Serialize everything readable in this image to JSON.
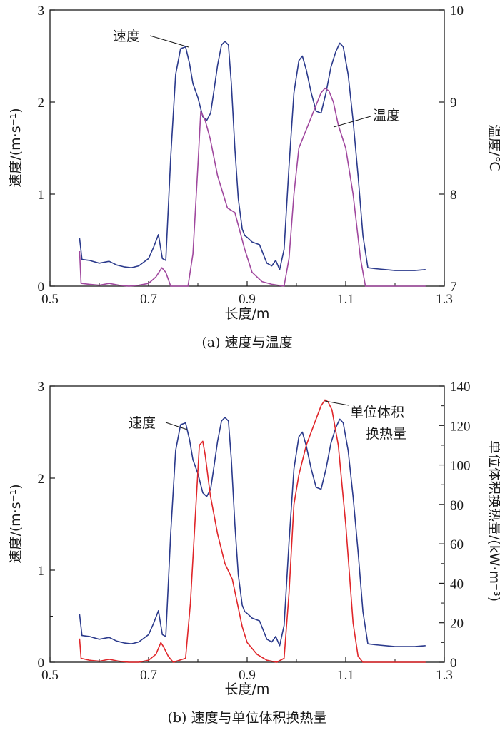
{
  "chart_data": [
    {
      "type": "line",
      "caption": "(a) 速度与温度",
      "xlabel": "长度/m",
      "ylabel_left": "速度/(m·s⁻¹)",
      "ylabel_right": "温度/℃",
      "xlim": [
        0.5,
        1.3
      ],
      "ylim_left": [
        0,
        3
      ],
      "ylim_right": [
        7,
        10
      ],
      "xticks": [
        "0.5",
        "0.7",
        "0.9",
        "1.1",
        "1.3"
      ],
      "yticks_left": [
        "0",
        "1",
        "2",
        "3"
      ],
      "yticks_right": [
        "7",
        "8",
        "9",
        "10"
      ],
      "series": [
        {
          "name": "速度",
          "axis": "left",
          "color": "#2b3a8c",
          "x": [
            0.56,
            0.565,
            0.58,
            0.6,
            0.62,
            0.635,
            0.65,
            0.665,
            0.68,
            0.7,
            0.71,
            0.72,
            0.728,
            0.735,
            0.745,
            0.755,
            0.765,
            0.775,
            0.783,
            0.79,
            0.8,
            0.81,
            0.818,
            0.826,
            0.832,
            0.84,
            0.848,
            0.855,
            0.862,
            0.868,
            0.875,
            0.882,
            0.89,
            0.895,
            0.9,
            0.91,
            0.925,
            0.94,
            0.95,
            0.958,
            0.966,
            0.975,
            0.985,
            0.995,
            1.005,
            1.012,
            1.02,
            1.03,
            1.04,
            1.05,
            1.06,
            1.07,
            1.08,
            1.088,
            1.095,
            1.105,
            1.115,
            1.125,
            1.135,
            1.145,
            1.16,
            1.2,
            1.24,
            1.262
          ],
          "y": [
            0.52,
            0.29,
            0.28,
            0.25,
            0.27,
            0.23,
            0.21,
            0.2,
            0.22,
            0.3,
            0.42,
            0.56,
            0.3,
            0.28,
            1.4,
            2.3,
            2.58,
            2.6,
            2.42,
            2.2,
            2.05,
            1.84,
            1.8,
            1.88,
            2.1,
            2.4,
            2.62,
            2.66,
            2.62,
            2.2,
            1.5,
            0.95,
            0.62,
            0.55,
            0.53,
            0.48,
            0.45,
            0.25,
            0.22,
            0.28,
            0.18,
            0.4,
            1.3,
            2.1,
            2.45,
            2.5,
            2.35,
            2.1,
            1.9,
            1.88,
            2.1,
            2.38,
            2.55,
            2.64,
            2.6,
            2.3,
            1.8,
            1.2,
            0.55,
            0.2,
            0.19,
            0.17,
            0.17,
            0.18
          ]
        },
        {
          "name": "温度",
          "axis": "right",
          "color": "#a0489e",
          "x": [
            0.56,
            0.563,
            0.58,
            0.6,
            0.62,
            0.64,
            0.66,
            0.68,
            0.7,
            0.715,
            0.727,
            0.735,
            0.745,
            0.78,
            0.79,
            0.8,
            0.806,
            0.815,
            0.825,
            0.84,
            0.86,
            0.875,
            0.885,
            0.895,
            0.91,
            0.93,
            0.95,
            0.975,
            0.985,
            0.995,
            1.005,
            1.02,
            1.035,
            1.05,
            1.058,
            1.066,
            1.075,
            1.085,
            1.1,
            1.115,
            1.13,
            1.14,
            1.18,
            1.22,
            1.262
          ],
          "y": [
            7.38,
            7.03,
            7.02,
            7.01,
            7.03,
            7.01,
            7.0,
            7.01,
            7.03,
            7.1,
            7.2,
            7.15,
            7.0,
            7.0,
            7.35,
            8.3,
            8.9,
            8.8,
            8.6,
            8.2,
            7.85,
            7.8,
            7.6,
            7.4,
            7.15,
            7.05,
            7.02,
            7.0,
            7.3,
            8.0,
            8.5,
            8.7,
            8.9,
            9.1,
            9.15,
            9.12,
            9.0,
            8.75,
            8.5,
            8.0,
            7.3,
            7.0,
            7.0,
            7.0,
            7.0
          ]
        }
      ],
      "annotations": [
        "速度",
        "温度"
      ]
    },
    {
      "type": "line",
      "caption": "(b) 速度与单位体积换热量",
      "xlabel": "长度/m",
      "ylabel_left": "速度/(m·s⁻¹)",
      "ylabel_right": "单位体积换热量/(kW·m⁻³)",
      "xlim": [
        0.5,
        1.3
      ],
      "ylim_left": [
        0,
        3
      ],
      "ylim_right": [
        0,
        140
      ],
      "xticks": [
        "0.5",
        "0.7",
        "0.9",
        "1.1",
        "1.3"
      ],
      "yticks_left": [
        "0",
        "1",
        "2",
        "3"
      ],
      "yticks_right": [
        "0",
        "20",
        "40",
        "60",
        "80",
        "100",
        "120",
        "140"
      ],
      "series": [
        {
          "name": "速度",
          "axis": "left",
          "color": "#2b3a8c",
          "x": [
            0.56,
            0.565,
            0.58,
            0.6,
            0.62,
            0.635,
            0.65,
            0.665,
            0.68,
            0.7,
            0.71,
            0.72,
            0.728,
            0.735,
            0.745,
            0.755,
            0.765,
            0.775,
            0.783,
            0.79,
            0.8,
            0.81,
            0.818,
            0.826,
            0.832,
            0.84,
            0.848,
            0.855,
            0.862,
            0.868,
            0.875,
            0.882,
            0.89,
            0.895,
            0.9,
            0.91,
            0.925,
            0.94,
            0.95,
            0.958,
            0.966,
            0.975,
            0.985,
            0.995,
            1.005,
            1.012,
            1.02,
            1.03,
            1.04,
            1.05,
            1.06,
            1.07,
            1.08,
            1.088,
            1.095,
            1.105,
            1.115,
            1.125,
            1.135,
            1.145,
            1.16,
            1.2,
            1.24,
            1.262
          ],
          "y": [
            0.52,
            0.29,
            0.28,
            0.25,
            0.27,
            0.23,
            0.21,
            0.2,
            0.22,
            0.3,
            0.42,
            0.56,
            0.3,
            0.28,
            1.4,
            2.3,
            2.58,
            2.6,
            2.42,
            2.2,
            2.05,
            1.84,
            1.8,
            1.88,
            2.1,
            2.4,
            2.62,
            2.66,
            2.62,
            2.2,
            1.5,
            0.95,
            0.62,
            0.55,
            0.53,
            0.48,
            0.45,
            0.25,
            0.22,
            0.28,
            0.18,
            0.4,
            1.3,
            2.1,
            2.45,
            2.5,
            2.35,
            2.1,
            1.9,
            1.88,
            2.1,
            2.38,
            2.55,
            2.64,
            2.6,
            2.3,
            1.8,
            1.2,
            0.55,
            0.2,
            0.19,
            0.17,
            0.17,
            0.18
          ]
        },
        {
          "name": "单位体积换热量",
          "axis": "right",
          "color": "#e0262a",
          "x": [
            0.56,
            0.563,
            0.58,
            0.6,
            0.62,
            0.64,
            0.66,
            0.68,
            0.7,
            0.715,
            0.725,
            0.73,
            0.74,
            0.75,
            0.775,
            0.785,
            0.795,
            0.803,
            0.81,
            0.815,
            0.825,
            0.84,
            0.855,
            0.87,
            0.88,
            0.89,
            0.9,
            0.92,
            0.94,
            0.96,
            0.975,
            0.985,
            0.995,
            1.005,
            1.02,
            1.035,
            1.05,
            1.058,
            1.064,
            1.072,
            1.085,
            1.1,
            1.115,
            1.125,
            1.135,
            1.15,
            1.2,
            1.262
          ],
          "y": [
            12,
            2,
            1,
            0.5,
            1.5,
            0.5,
            0,
            0,
            1,
            4,
            10,
            8,
            3,
            0,
            2,
            30,
            75,
            110,
            112,
            105,
            85,
            65,
            50,
            42,
            30,
            18,
            10,
            4,
            1,
            0,
            2,
            35,
            80,
            95,
            110,
            120,
            130,
            133,
            132,
            128,
            110,
            70,
            20,
            3,
            0,
            0,
            0,
            0
          ]
        }
      ],
      "annotations": [
        "速度",
        "单位体积",
        "换热量"
      ]
    }
  ]
}
